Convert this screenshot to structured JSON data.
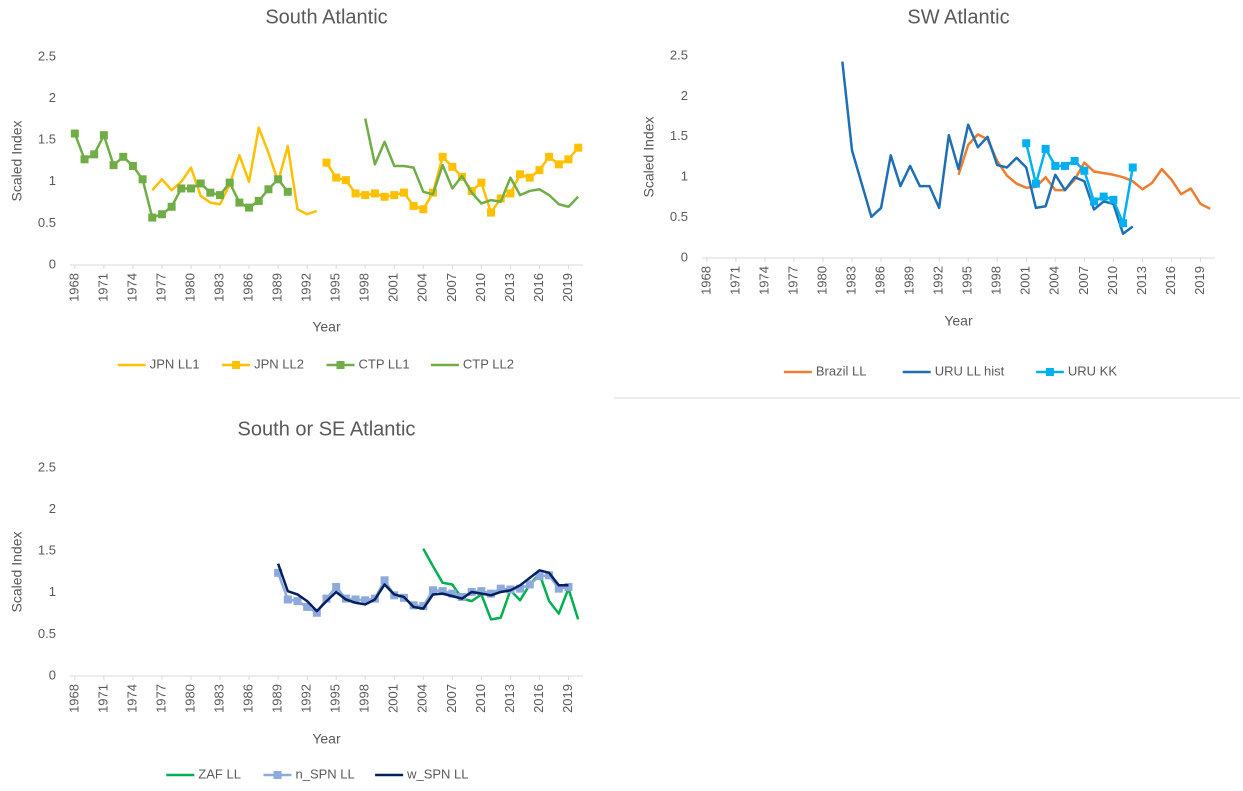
{
  "chart_data": [
    {
      "type": "line",
      "title": "South Atlantic",
      "xlabel": "Year",
      "ylabel": "Scaled Index",
      "xlim": [
        1967.5,
        2020.5
      ],
      "xticks": [
        1968,
        1971,
        1974,
        1977,
        1980,
        1983,
        1986,
        1989,
        1992,
        1995,
        1998,
        2001,
        2004,
        2007,
        2010,
        2013,
        2016,
        2019
      ],
      "ylim": [
        0,
        2.5
      ],
      "yticks": [
        0,
        0.5,
        1,
        1.5,
        2,
        2.5
      ],
      "legend": "bottom",
      "series": [
        {
          "name": "JPN LL1",
          "color": "#FFC000",
          "marker": false,
          "x": [
            1976,
            1977,
            1978,
            1979,
            1980,
            1981,
            1982,
            1983,
            1984,
            1985,
            1986,
            1987,
            1988,
            1989,
            1990,
            1991,
            1992,
            1993
          ],
          "values": [
            0.9,
            1.03,
            0.9,
            1.0,
            1.17,
            0.83,
            0.75,
            0.73,
            0.97,
            1.32,
            1.0,
            1.65,
            1.35,
            1.0,
            1.43,
            0.67,
            0.61,
            0.65
          ]
        },
        {
          "name": "JPN LL2",
          "color": "#FFC000",
          "marker": true,
          "x": [
            1994,
            1995,
            1996,
            1997,
            1998,
            1999,
            2000,
            2001,
            2002,
            2003,
            2004,
            2005,
            2006,
            2007,
            2008,
            2009,
            2010,
            2011,
            2012,
            2013,
            2014,
            2015,
            2016,
            2017,
            2018,
            2019,
            2020
          ],
          "values": [
            1.23,
            1.05,
            1.02,
            0.86,
            0.84,
            0.86,
            0.82,
            0.84,
            0.87,
            0.71,
            0.67,
            0.87,
            1.3,
            1.18,
            1.06,
            0.89,
            0.99,
            0.63,
            0.8,
            0.86,
            1.09,
            1.05,
            1.14,
            1.3,
            1.21,
            1.27,
            1.41
          ]
        },
        {
          "name": "CTP LL1",
          "color": "#70AD47",
          "marker": true,
          "x": [
            1968,
            1969,
            1970,
            1971,
            1972,
            1973,
            1974,
            1975,
            1976,
            1977,
            1978,
            1979,
            1980,
            1981,
            1982,
            1983,
            1984,
            1985,
            1986,
            1987,
            1988,
            1989,
            1990
          ],
          "values": [
            1.58,
            1.27,
            1.33,
            1.56,
            1.2,
            1.3,
            1.19,
            1.03,
            0.57,
            0.61,
            0.7,
            0.92,
            0.92,
            0.98,
            0.87,
            0.84,
            0.99,
            0.75,
            0.69,
            0.77,
            0.91,
            1.03,
            0.88
          ]
        },
        {
          "name": "CTP LL2",
          "color": "#70AD47",
          "marker": false,
          "x": [
            1998,
            1999,
            2000,
            2001,
            2002,
            2003,
            2004,
            2005,
            2006,
            2007,
            2008,
            2009,
            2010,
            2011,
            2012,
            2013,
            2014,
            2015,
            2016,
            2017,
            2018,
            2019,
            2020
          ],
          "values": [
            1.76,
            1.21,
            1.48,
            1.19,
            1.19,
            1.17,
            0.88,
            0.85,
            1.2,
            0.92,
            1.07,
            0.87,
            0.74,
            0.78,
            0.76,
            1.05,
            0.84,
            0.89,
            0.91,
            0.84,
            0.73,
            0.7,
            0.82
          ]
        }
      ]
    },
    {
      "type": "line",
      "title": "SW Atlantic",
      "xlabel": "Year",
      "ylabel": "Scaled Index",
      "xlim": [
        1967.5,
        2020.5
      ],
      "xticks": [
        1968,
        1971,
        1974,
        1977,
        1980,
        1983,
        1986,
        1989,
        1992,
        1995,
        1998,
        2001,
        2004,
        2007,
        2010,
        2013,
        2016,
        2019
      ],
      "ylim": [
        0,
        2.5
      ],
      "yticks": [
        0,
        0.5,
        1,
        1.5,
        2,
        2.5
      ],
      "legend": "bottom",
      "series": [
        {
          "name": "Brazil LL",
          "color": "#ED7D31",
          "marker": false,
          "x": [
            1994,
            1995,
            1996,
            1997,
            1998,
            1999,
            2000,
            2001,
            2002,
            2003,
            2004,
            2005,
            2006,
            2007,
            2008,
            2009,
            2010,
            2011,
            2012,
            2013,
            2014,
            2015,
            2016,
            2017,
            2018,
            2019,
            2020
          ],
          "values": [
            1.03,
            1.4,
            1.53,
            1.47,
            1.2,
            1.02,
            0.92,
            0.87,
            0.88,
            1.0,
            0.84,
            0.84,
            0.97,
            1.18,
            1.07,
            1.05,
            1.03,
            1.0,
            0.95,
            0.85,
            0.93,
            1.1,
            0.97,
            0.79,
            0.86,
            0.67,
            0.61
          ]
        },
        {
          "name": "URU LL hist",
          "color": "#1F6FB5",
          "marker": false,
          "x": [
            1982,
            1983,
            1984,
            1985,
            1986,
            1987,
            1988,
            1989,
            1990,
            1991,
            1992,
            1993,
            1994,
            1995,
            1996,
            1997,
            1998,
            1999,
            2000,
            2001,
            2002,
            2003,
            2004,
            2005,
            2006,
            2007,
            2008,
            2009,
            2010,
            2011,
            2012
          ],
          "values": [
            2.43,
            1.33,
            0.92,
            0.51,
            0.62,
            1.27,
            0.89,
            1.14,
            0.89,
            0.89,
            0.62,
            1.52,
            1.1,
            1.65,
            1.37,
            1.5,
            1.15,
            1.12,
            1.24,
            1.12,
            0.62,
            0.64,
            1.03,
            0.84,
            1.0,
            0.95,
            0.6,
            0.7,
            0.67,
            0.3,
            0.39
          ]
        },
        {
          "name": "URU KK",
          "color": "#00B0F0",
          "marker": true,
          "x": [
            2001,
            2002,
            2003,
            2004,
            2005,
            2006,
            2007,
            2008,
            2009,
            2010,
            2011,
            2012
          ],
          "values": [
            1.42,
            0.92,
            1.35,
            1.14,
            1.14,
            1.2,
            1.08,
            0.7,
            0.76,
            0.72,
            0.43,
            1.12
          ]
        }
      ]
    },
    {
      "type": "line",
      "title": "South or SE Atlantic",
      "xlabel": "Year",
      "ylabel": "Scaled Index",
      "xlim": [
        1967.5,
        2020.5
      ],
      "xticks": [
        1968,
        1971,
        1974,
        1977,
        1980,
        1983,
        1986,
        1989,
        1992,
        1995,
        1998,
        2001,
        2004,
        2007,
        2010,
        2013,
        2016,
        2019
      ],
      "ylim": [
        0,
        2.5
      ],
      "yticks": [
        0,
        0.5,
        1,
        1.5,
        2,
        2.5
      ],
      "legend": "bottom",
      "series": [
        {
          "name": "ZAF LL",
          "color": "#00B050",
          "marker": false,
          "x": [
            2004,
            2005,
            2006,
            2007,
            2008,
            2009,
            2010,
            2011,
            2012,
            2013,
            2014,
            2015,
            2016,
            2017,
            2018,
            2019,
            2020
          ],
          "values": [
            1.53,
            1.32,
            1.12,
            1.1,
            0.93,
            0.9,
            0.98,
            0.68,
            0.7,
            1.03,
            0.91,
            1.1,
            1.23,
            0.9,
            0.75,
            1.05,
            0.68
          ]
        },
        {
          "name": "n_SPN LL",
          "color": "#8EA9DB",
          "marker": true,
          "x": [
            1989,
            1990,
            1991,
            1992,
            1993,
            1994,
            1995,
            1996,
            1997,
            1998,
            1999,
            2000,
            2001,
            2002,
            2003,
            2004,
            2005,
            2006,
            2007,
            2008,
            2009,
            2010,
            2011,
            2012,
            2013,
            2014,
            2015,
            2016,
            2017,
            2018,
            2019
          ],
          "values": [
            1.24,
            0.92,
            0.9,
            0.83,
            0.76,
            0.93,
            1.07,
            0.93,
            0.92,
            0.91,
            0.93,
            1.15,
            0.97,
            0.94,
            0.85,
            0.84,
            1.03,
            1.02,
            0.99,
            0.95,
            1.01,
            1.02,
            0.99,
            1.05,
            1.04,
            1.05,
            1.1,
            1.2,
            1.21,
            1.05,
            1.07
          ]
        },
        {
          "name": "w_SPN LL",
          "color": "#002060",
          "marker": false,
          "x": [
            1989,
            1990,
            1991,
            1992,
            1993,
            1994,
            1995,
            1996,
            1997,
            1998,
            1999,
            2000,
            2001,
            2002,
            2003,
            2004,
            2005,
            2006,
            2007,
            2008,
            2009,
            2010,
            2011,
            2012,
            2013,
            2014,
            2015,
            2016,
            2017,
            2018,
            2019
          ],
          "values": [
            1.35,
            1.02,
            0.98,
            0.9,
            0.78,
            0.9,
            1.01,
            0.92,
            0.88,
            0.86,
            0.92,
            1.1,
            0.98,
            0.95,
            0.83,
            0.81,
            0.98,
            0.99,
            0.96,
            0.93,
            1.01,
            0.99,
            0.97,
            1.01,
            1.03,
            1.09,
            1.18,
            1.27,
            1.24,
            1.09,
            1.09
          ]
        }
      ]
    }
  ]
}
